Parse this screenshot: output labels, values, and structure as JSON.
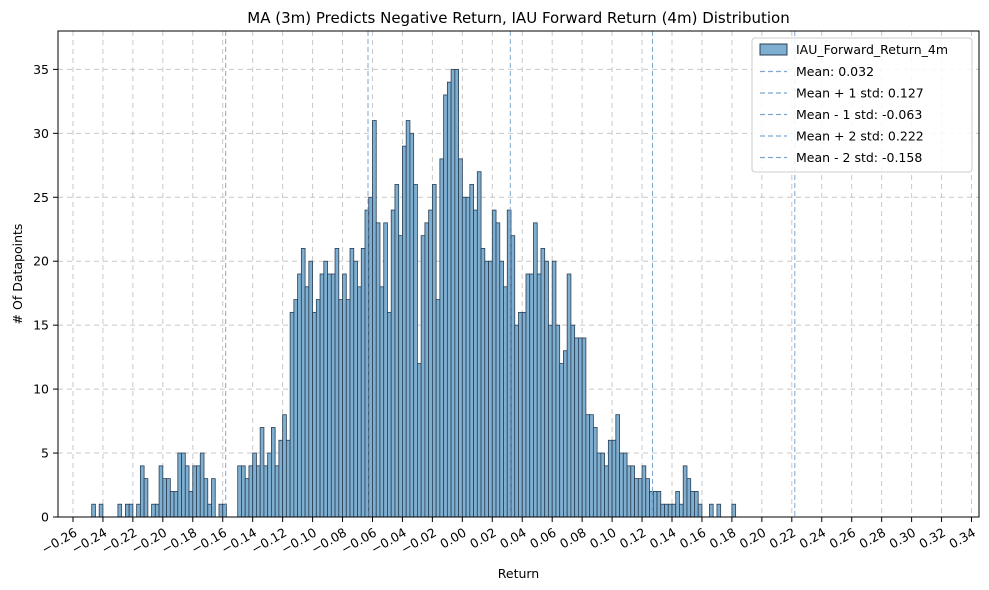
{
  "chart_data": {
    "type": "histogram",
    "title": "MA (3m) Predicts Negative Return, IAU Forward Return (4m) Distribution",
    "xlabel": "Return",
    "ylabel": "# Of Datapoints",
    "xlim": [
      -0.27,
      0.345
    ],
    "ylim": [
      0,
      38
    ],
    "x_ticks": [
      "−0.26",
      "−0.24",
      "−0.22",
      "−0.20",
      "−0.18",
      "−0.16",
      "−0.14",
      "−0.12",
      "−0.10",
      "−0.08",
      "−0.06",
      "−0.04",
      "−0.02",
      "0.00",
      "0.02",
      "0.04",
      "0.06",
      "0.08",
      "0.10",
      "0.12",
      "0.14",
      "0.16",
      "0.18",
      "0.20",
      "0.22",
      "0.24",
      "0.26",
      "0.28",
      "0.30",
      "0.32",
      "0.34"
    ],
    "y_ticks": [
      "0",
      "5",
      "10",
      "15",
      "20",
      "25",
      "30",
      "35"
    ],
    "grid": true,
    "legend_position": "top-right",
    "bar_color": "#7eaed0",
    "bar_edge_color": "#2b3f55",
    "line_color": "#7fa6d0",
    "series": [
      {
        "name": "IAU_Forward_Return_4m",
        "bin_start": -0.2475,
        "bin_width": 0.0025,
        "values": [
          1,
          0,
          1,
          0,
          0,
          0,
          0,
          1,
          0,
          1,
          1,
          0,
          1,
          4,
          3,
          0,
          1,
          1,
          4,
          3,
          3,
          2,
          2,
          5,
          5,
          4,
          2,
          4,
          4,
          5,
          3,
          1,
          3,
          0,
          1,
          1,
          0,
          0,
          0,
          4,
          4,
          3,
          4,
          5,
          4,
          7,
          4,
          5,
          7,
          4,
          6,
          8,
          6,
          16,
          17,
          19,
          21,
          18,
          20,
          16,
          17,
          19,
          20,
          19,
          19,
          21,
          17,
          19,
          17,
          21,
          20,
          18,
          21,
          24,
          25,
          31,
          23,
          18,
          23,
          16,
          24,
          26,
          22,
          29,
          31,
          30,
          26,
          12,
          22,
          23,
          24,
          26,
          17,
          28,
          33,
          34,
          35,
          35,
          28,
          25,
          25,
          26,
          24,
          27,
          21,
          20,
          20,
          24,
          23,
          20,
          18,
          24,
          22,
          15,
          16,
          16,
          19,
          19,
          23,
          19,
          21,
          20,
          15,
          20,
          15,
          12,
          13,
          19,
          15,
          14,
          14,
          14,
          8,
          8,
          7,
          5,
          5,
          4,
          6,
          6,
          8,
          5,
          5,
          4,
          4,
          3,
          3,
          4,
          3,
          2,
          2,
          2,
          1,
          1,
          1,
          1,
          2,
          1,
          4,
          3,
          2,
          2,
          1,
          0,
          0,
          1,
          0,
          1,
          0,
          0,
          0,
          1,
          0
        ]
      }
    ],
    "reference_lines": [
      {
        "label": "Mean: 0.032",
        "x": 0.032
      },
      {
        "label": "Mean + 1 std: 0.127",
        "x": 0.127
      },
      {
        "label": "Mean - 1 std: -0.063",
        "x": -0.063
      },
      {
        "label": "Mean + 2 std: 0.222",
        "x": 0.222
      },
      {
        "label": "Mean - 2 std: -0.158",
        "x": -0.158
      }
    ]
  }
}
